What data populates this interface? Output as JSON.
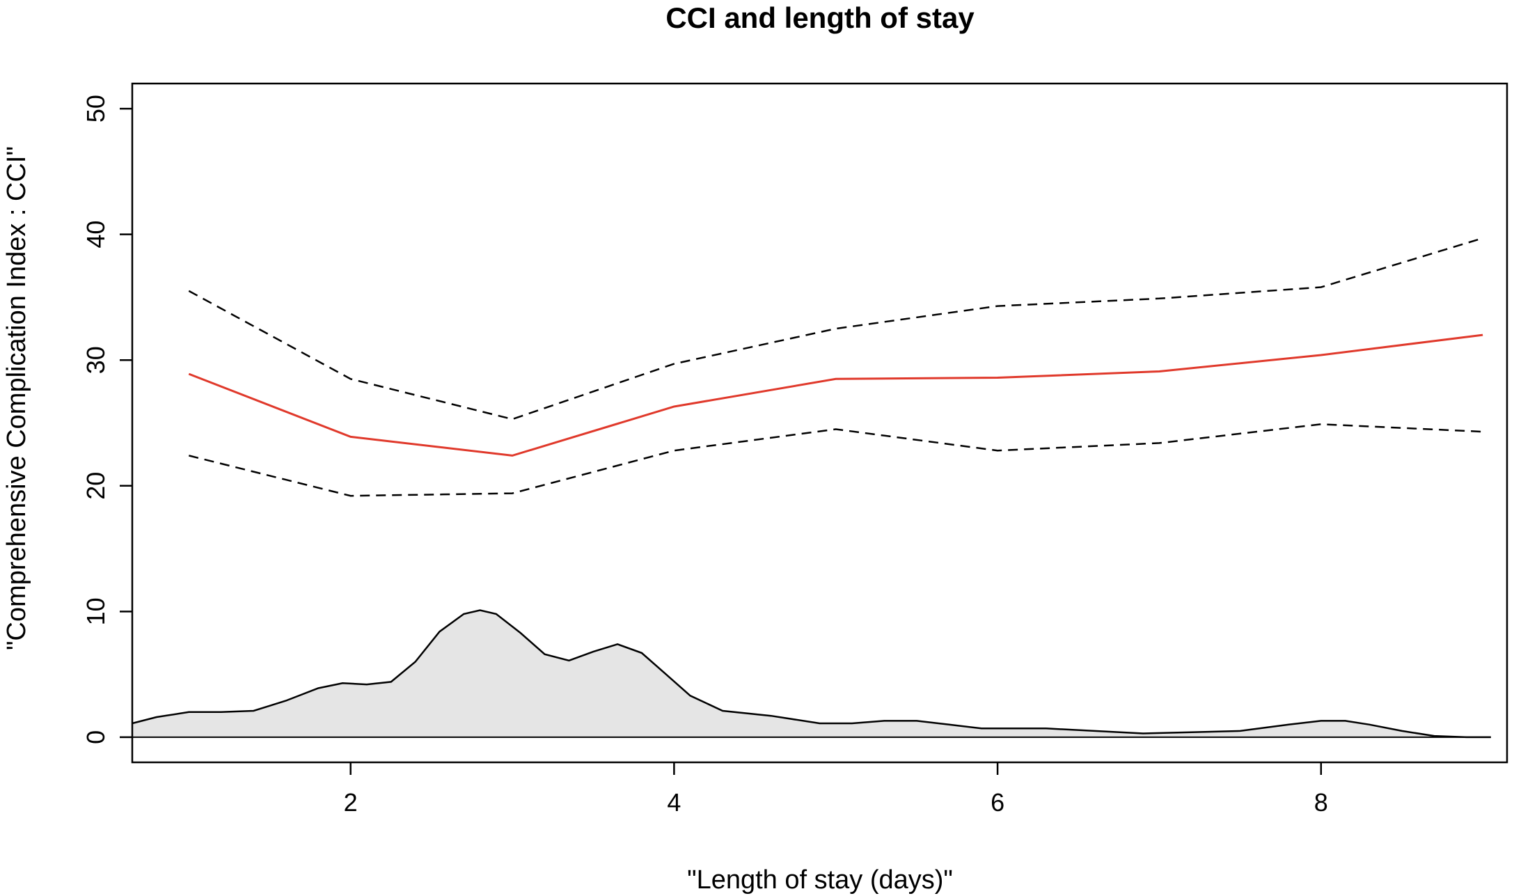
{
  "chart_data": {
    "type": "line",
    "title": "CCI and length of stay",
    "xlabel": "\"Length of stay (days)\"",
    "ylabel": "\"Comprehensive Complication Index : CCI\"",
    "xlim": [
      0.65,
      9.15
    ],
    "ylim": [
      -2,
      52
    ],
    "xticks": [
      "2",
      "4",
      "6",
      "8"
    ],
    "yticks": [
      "0",
      "10",
      "20",
      "30",
      "40",
      "50"
    ],
    "grid": false,
    "legend": "none",
    "colors": {
      "estimate": "#e0392b",
      "ci": "#000000",
      "density_fill": "#e5e5e5",
      "density_stroke": "#000000"
    },
    "x": [
      1,
      2,
      3,
      4,
      5,
      6,
      7,
      8,
      9
    ],
    "series": [
      {
        "role": "estimate",
        "style": "solid",
        "values": [
          28.9,
          23.9,
          22.4,
          26.3,
          28.5,
          28.6,
          29.1,
          30.4,
          32.0
        ]
      },
      {
        "role": "upper",
        "style": "dashed",
        "values": [
          35.5,
          28.5,
          25.3,
          29.7,
          32.5,
          34.3,
          34.9,
          35.8,
          39.7
        ]
      },
      {
        "role": "lower",
        "style": "dashed",
        "values": [
          22.4,
          19.2,
          19.4,
          22.8,
          24.5,
          22.8,
          23.4,
          24.9,
          24.3
        ]
      }
    ],
    "density": {
      "x": [
        0.65,
        0.8,
        1.0,
        1.2,
        1.4,
        1.6,
        1.8,
        1.95,
        2.1,
        2.25,
        2.4,
        2.55,
        2.7,
        2.8,
        2.9,
        3.05,
        3.2,
        3.35,
        3.5,
        3.65,
        3.8,
        3.95,
        4.1,
        4.3,
        4.6,
        4.9,
        5.1,
        5.3,
        5.5,
        5.7,
        5.9,
        6.1,
        6.3,
        6.6,
        6.9,
        7.2,
        7.5,
        7.8,
        8.0,
        8.15,
        8.3,
        8.5,
        8.7,
        8.9,
        9.05
      ],
      "values": [
        1.1,
        1.6,
        2.0,
        2.0,
        2.1,
        2.9,
        3.9,
        4.3,
        4.2,
        4.4,
        6.0,
        8.4,
        9.8,
        10.1,
        9.8,
        8.3,
        6.6,
        6.1,
        6.8,
        7.4,
        6.7,
        5.0,
        3.3,
        2.1,
        1.7,
        1.1,
        1.1,
        1.3,
        1.3,
        1.0,
        0.7,
        0.7,
        0.7,
        0.5,
        0.3,
        0.4,
        0.5,
        1.0,
        1.3,
        1.3,
        1.0,
        0.5,
        0.1,
        0.0,
        0.0
      ]
    }
  }
}
